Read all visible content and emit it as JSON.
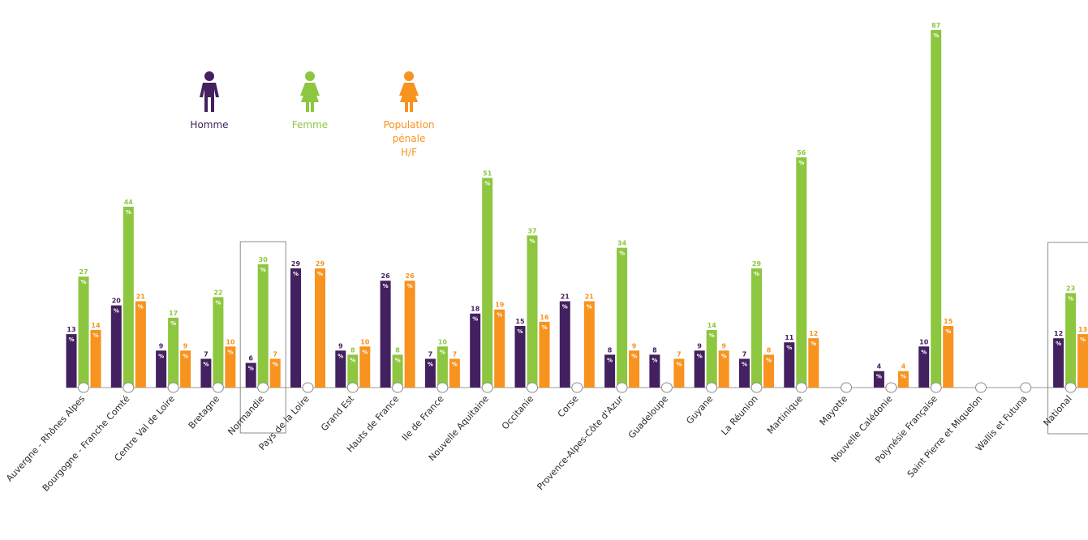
{
  "legend": [
    {
      "label": "Homme",
      "color": "#43205f",
      "icon": "man-icon"
    },
    {
      "label": "Femme",
      "color": "#8dc63f",
      "icon": "woman-icon"
    },
    {
      "label": "Population\npénale\nH/F",
      "color": "#f7931e",
      "icon": "person-icon"
    }
  ],
  "chart_data": {
    "type": "bar",
    "unit": "%",
    "categories": [
      "Auvergne - Rhônes Alpes",
      "Bourgogne - Franche Comté",
      "Centre Val de Loire",
      "Bretagne",
      "Normandie",
      "Pays de la Loire",
      "Grand Est",
      "Hauts de France",
      "Ile de France",
      "Nouvelle Aquitaine",
      "Occitanie",
      "Corse",
      "Provence-Alpes-Côte d'Azur",
      "Guadeloupe",
      "Guyane",
      "La Réunion",
      "Martinique",
      "Mayotte",
      "Nouvelle Calédonie",
      "Polynésie Française",
      "Saint Pierre et Miquelon",
      "Wallis et Futuna",
      "National"
    ],
    "series": [
      {
        "name": "Homme",
        "color": "#43205f",
        "values": [
          13,
          20,
          9,
          7,
          6,
          29,
          9,
          26,
          7,
          18,
          15,
          21,
          8,
          8,
          9,
          7,
          11,
          null,
          4,
          10,
          null,
          null,
          12
        ]
      },
      {
        "name": "Femme",
        "color": "#8dc63f",
        "values": [
          27,
          44,
          17,
          22,
          30,
          null,
          8,
          8,
          10,
          51,
          37,
          null,
          34,
          null,
          14,
          29,
          56,
          null,
          null,
          87,
          null,
          null,
          23
        ]
      },
      {
        "name": "Population pénale H/F",
        "color": "#f7931e",
        "values": [
          14,
          21,
          9,
          10,
          7,
          29,
          10,
          26,
          7,
          19,
          16,
          21,
          9,
          7,
          9,
          8,
          12,
          null,
          4,
          15,
          null,
          null,
          13
        ]
      }
    ],
    "highlighted": [
      "Normandie",
      "National"
    ],
    "grid": false
  }
}
